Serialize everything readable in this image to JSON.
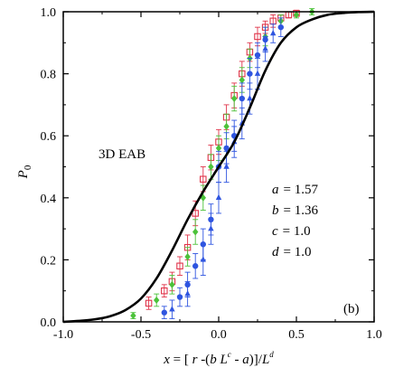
{
  "chart_data": {
    "type": "scatter",
    "xlim": [
      -1.0,
      1.0
    ],
    "ylim": [
      0.0,
      1.0
    ],
    "x_ticks": [
      "-1.0",
      "-0.5",
      "0.0",
      "0.5",
      "1.0"
    ],
    "y_ticks": [
      "0.0",
      "0.2",
      "0.4",
      "0.6",
      "0.8",
      "1.0"
    ],
    "xlabel": "x = [ r -(b L^c - a)] / L^d",
    "xlabel_parts": {
      "var": "x",
      "eq": " = [ ",
      "r": "r",
      "mid": " -(",
      "b": "b",
      "L1": " L",
      "c_sup": "c",
      "tail": " - ",
      "a": "a",
      "close": ")]/",
      "L2": "L",
      "d_sup": "d"
    },
    "ylabel": "P",
    "ylabel_sub": "0",
    "annotation": "3D EAB",
    "panel_label": "(b)",
    "params": [
      {
        "name": "a",
        "value": "= 1.57"
      },
      {
        "name": "b",
        "value": "= 1.36"
      },
      {
        "name": "c",
        "value": "= 1.0"
      },
      {
        "name": "d",
        "value": "= 1.0"
      }
    ],
    "curve": {
      "x": [
        -1.0,
        -0.9,
        -0.8,
        -0.7,
        -0.6,
        -0.5,
        -0.4,
        -0.3,
        -0.2,
        -0.1,
        0.0,
        0.1,
        0.2,
        0.3,
        0.4,
        0.5,
        0.6,
        0.7,
        0.8,
        0.9,
        1.0
      ],
      "y": [
        0.0,
        0.003,
        0.008,
        0.018,
        0.038,
        0.075,
        0.14,
        0.23,
        0.33,
        0.42,
        0.5,
        0.58,
        0.69,
        0.81,
        0.9,
        0.95,
        0.975,
        0.99,
        0.996,
        0.999,
        1.0
      ]
    },
    "series": [
      {
        "color": "#e0344a",
        "marker": "square-open",
        "x": [
          -0.45,
          -0.35,
          -0.3,
          -0.25,
          -0.2,
          -0.15,
          -0.1,
          -0.05,
          0.0,
          0.05,
          0.1,
          0.15,
          0.2,
          0.25,
          0.3,
          0.35,
          0.4,
          0.45,
          0.5
        ],
        "y": [
          0.06,
          0.1,
          0.13,
          0.18,
          0.24,
          0.35,
          0.46,
          0.53,
          0.58,
          0.66,
          0.73,
          0.8,
          0.87,
          0.92,
          0.95,
          0.97,
          0.98,
          0.99,
          0.995
        ],
        "err": [
          0.02,
          0.02,
          0.03,
          0.03,
          0.04,
          0.04,
          0.04,
          0.04,
          0.04,
          0.04,
          0.04,
          0.04,
          0.03,
          0.03,
          0.02,
          0.02,
          0.01,
          0.01,
          0.01
        ]
      },
      {
        "color": "#4cc23a",
        "marker": "diamond",
        "x": [
          -0.55,
          -0.4,
          -0.3,
          -0.2,
          -0.15,
          -0.1,
          -0.05,
          0.0,
          0.05,
          0.1,
          0.15,
          0.2,
          0.3,
          0.4,
          0.5,
          0.6
        ],
        "y": [
          0.02,
          0.07,
          0.12,
          0.21,
          0.29,
          0.4,
          0.5,
          0.56,
          0.63,
          0.72,
          0.78,
          0.85,
          0.92,
          0.97,
          0.99,
          1.0
        ],
        "err": [
          0.01,
          0.02,
          0.03,
          0.03,
          0.04,
          0.04,
          0.04,
          0.04,
          0.04,
          0.04,
          0.04,
          0.03,
          0.03,
          0.02,
          0.01,
          0.01
        ]
      },
      {
        "color": "#2f55e0",
        "marker": "circle",
        "x": [
          -0.35,
          -0.25,
          -0.2,
          -0.15,
          -0.1,
          -0.05,
          0.0,
          0.05,
          0.1,
          0.15,
          0.2,
          0.25,
          0.3,
          0.4
        ],
        "y": [
          0.03,
          0.08,
          0.12,
          0.18,
          0.25,
          0.33,
          0.5,
          0.56,
          0.6,
          0.72,
          0.8,
          0.86,
          0.91,
          0.95
        ],
        "err": [
          0.02,
          0.03,
          0.04,
          0.04,
          0.05,
          0.05,
          0.05,
          0.05,
          0.05,
          0.05,
          0.05,
          0.04,
          0.04,
          0.03
        ]
      },
      {
        "color": "#2f55e0",
        "marker": "triangle",
        "x": [
          -0.3,
          -0.2,
          -0.1,
          -0.05,
          0.0,
          0.05,
          0.1,
          0.15,
          0.2,
          0.25,
          0.3,
          0.35
        ],
        "y": [
          0.04,
          0.09,
          0.2,
          0.3,
          0.4,
          0.5,
          0.58,
          0.64,
          0.72,
          0.8,
          0.88,
          0.93
        ],
        "err": [
          0.03,
          0.04,
          0.05,
          0.05,
          0.05,
          0.05,
          0.05,
          0.05,
          0.05,
          0.05,
          0.04,
          0.03
        ]
      }
    ]
  }
}
